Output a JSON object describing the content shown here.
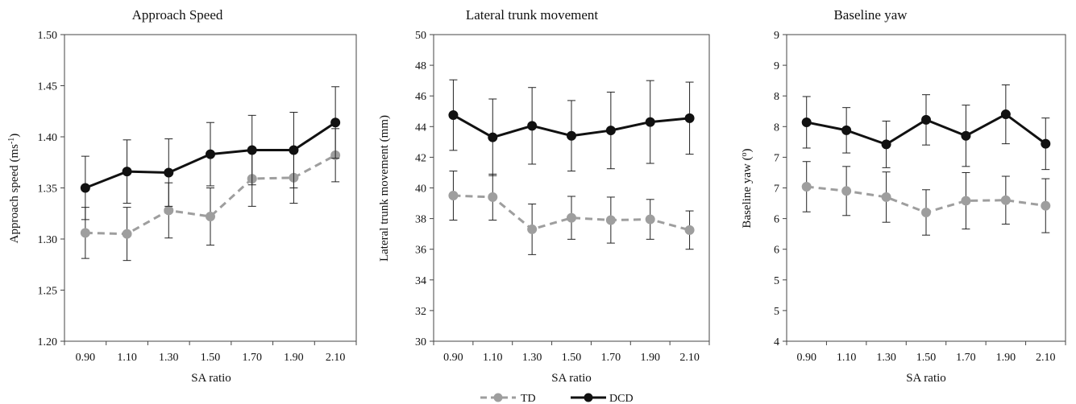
{
  "legend": {
    "placement": "bottom-center",
    "entries": [
      {
        "name": "TD",
        "color": "#9e9e9e",
        "dash": true
      },
      {
        "name": "DCD",
        "color": "#111111",
        "dash": false
      }
    ]
  },
  "chart_data": [
    {
      "type": "line",
      "title": "Approach Speed",
      "xlabel": "SA ratio",
      "ylabel": "Approach speed (ms-1)",
      "ylabel_main": "Approach speed (ms",
      "ylabel_sup": "-1",
      "ylabel_tail": ")",
      "categories": [
        "0.90",
        "1.10",
        "1.30",
        "1.50",
        "1.70",
        "1.90",
        "2.10"
      ],
      "ylim": [
        1.2,
        1.5
      ],
      "yticks": [
        1.2,
        1.25,
        1.3,
        1.35,
        1.4,
        1.45,
        1.5
      ],
      "ytick_labels": [
        "1.20",
        "1.25",
        "1.30",
        "1.35",
        "1.40",
        "1.45",
        "1.50"
      ],
      "grid": false,
      "series": [
        {
          "name": "TD",
          "values": [
            1.306,
            1.305,
            1.328,
            1.322,
            1.359,
            1.36,
            1.382
          ],
          "errors": [
            0.025,
            0.026,
            0.027,
            0.028,
            0.027,
            0.025,
            0.026
          ]
        },
        {
          "name": "DCD",
          "values": [
            1.35,
            1.366,
            1.365,
            1.383,
            1.387,
            1.387,
            1.414
          ],
          "errors": [
            0.031,
            0.031,
            0.033,
            0.031,
            0.034,
            0.037,
            0.035
          ]
        }
      ]
    },
    {
      "type": "line",
      "title": "Lateral trunk movement",
      "xlabel": "SA ratio",
      "ylabel": "Lateral trunk movement (mm)",
      "categories": [
        "0.90",
        "1.10",
        "1.30",
        "1.50",
        "1.70",
        "1.90",
        "2.10"
      ],
      "ylim": [
        30,
        50
      ],
      "yticks": [
        30,
        32,
        34,
        36,
        38,
        40,
        42,
        44,
        46,
        48,
        50
      ],
      "ytick_labels": [
        "30",
        "32",
        "34",
        "36",
        "38",
        "40",
        "42",
        "44",
        "46",
        "48",
        "50"
      ],
      "grid": false,
      "series": [
        {
          "name": "TD",
          "values": [
            39.5,
            39.4,
            37.3,
            38.05,
            37.9,
            37.95,
            37.25
          ],
          "errors": [
            1.6,
            1.5,
            1.65,
            1.4,
            1.5,
            1.3,
            1.25
          ]
        },
        {
          "name": "DCD",
          "values": [
            44.75,
            43.3,
            44.05,
            43.4,
            43.75,
            44.3,
            44.55
          ],
          "errors": [
            2.3,
            2.5,
            2.5,
            2.3,
            2.5,
            2.7,
            2.35
          ]
        }
      ]
    },
    {
      "type": "line",
      "title": "Baseline yaw",
      "xlabel": "SA ratio",
      "ylabel": "Baseline yaw (o)",
      "ylabel_main": "Baseline yaw (",
      "ylabel_sup": "o",
      "ylabel_tail": ")",
      "categories": [
        "0.90",
        "1.10",
        "1.30",
        "1.50",
        "1.70",
        "1.90",
        "2.10"
      ],
      "ylim": [
        4,
        9
      ],
      "yticks": [
        4,
        4.5,
        5,
        5.5,
        6,
        6.5,
        7,
        7.5,
        8,
        8.5,
        9
      ],
      "ytick_labels": [
        "4",
        "5",
        "5",
        "6",
        "6",
        "7",
        "7",
        "8",
        "8",
        "9",
        "9"
      ],
      "grid": false,
      "series": [
        {
          "name": "TD",
          "values": [
            6.52,
            6.45,
            6.35,
            6.1,
            6.29,
            6.3,
            6.21
          ],
          "errors": [
            0.41,
            0.4,
            0.41,
            0.37,
            0.46,
            0.39,
            0.44
          ]
        },
        {
          "name": "DCD",
          "values": [
            7.57,
            7.44,
            7.21,
            7.61,
            7.35,
            7.7,
            7.22
          ],
          "errors": [
            0.42,
            0.37,
            0.38,
            0.41,
            0.5,
            0.48,
            0.42
          ]
        }
      ]
    }
  ]
}
